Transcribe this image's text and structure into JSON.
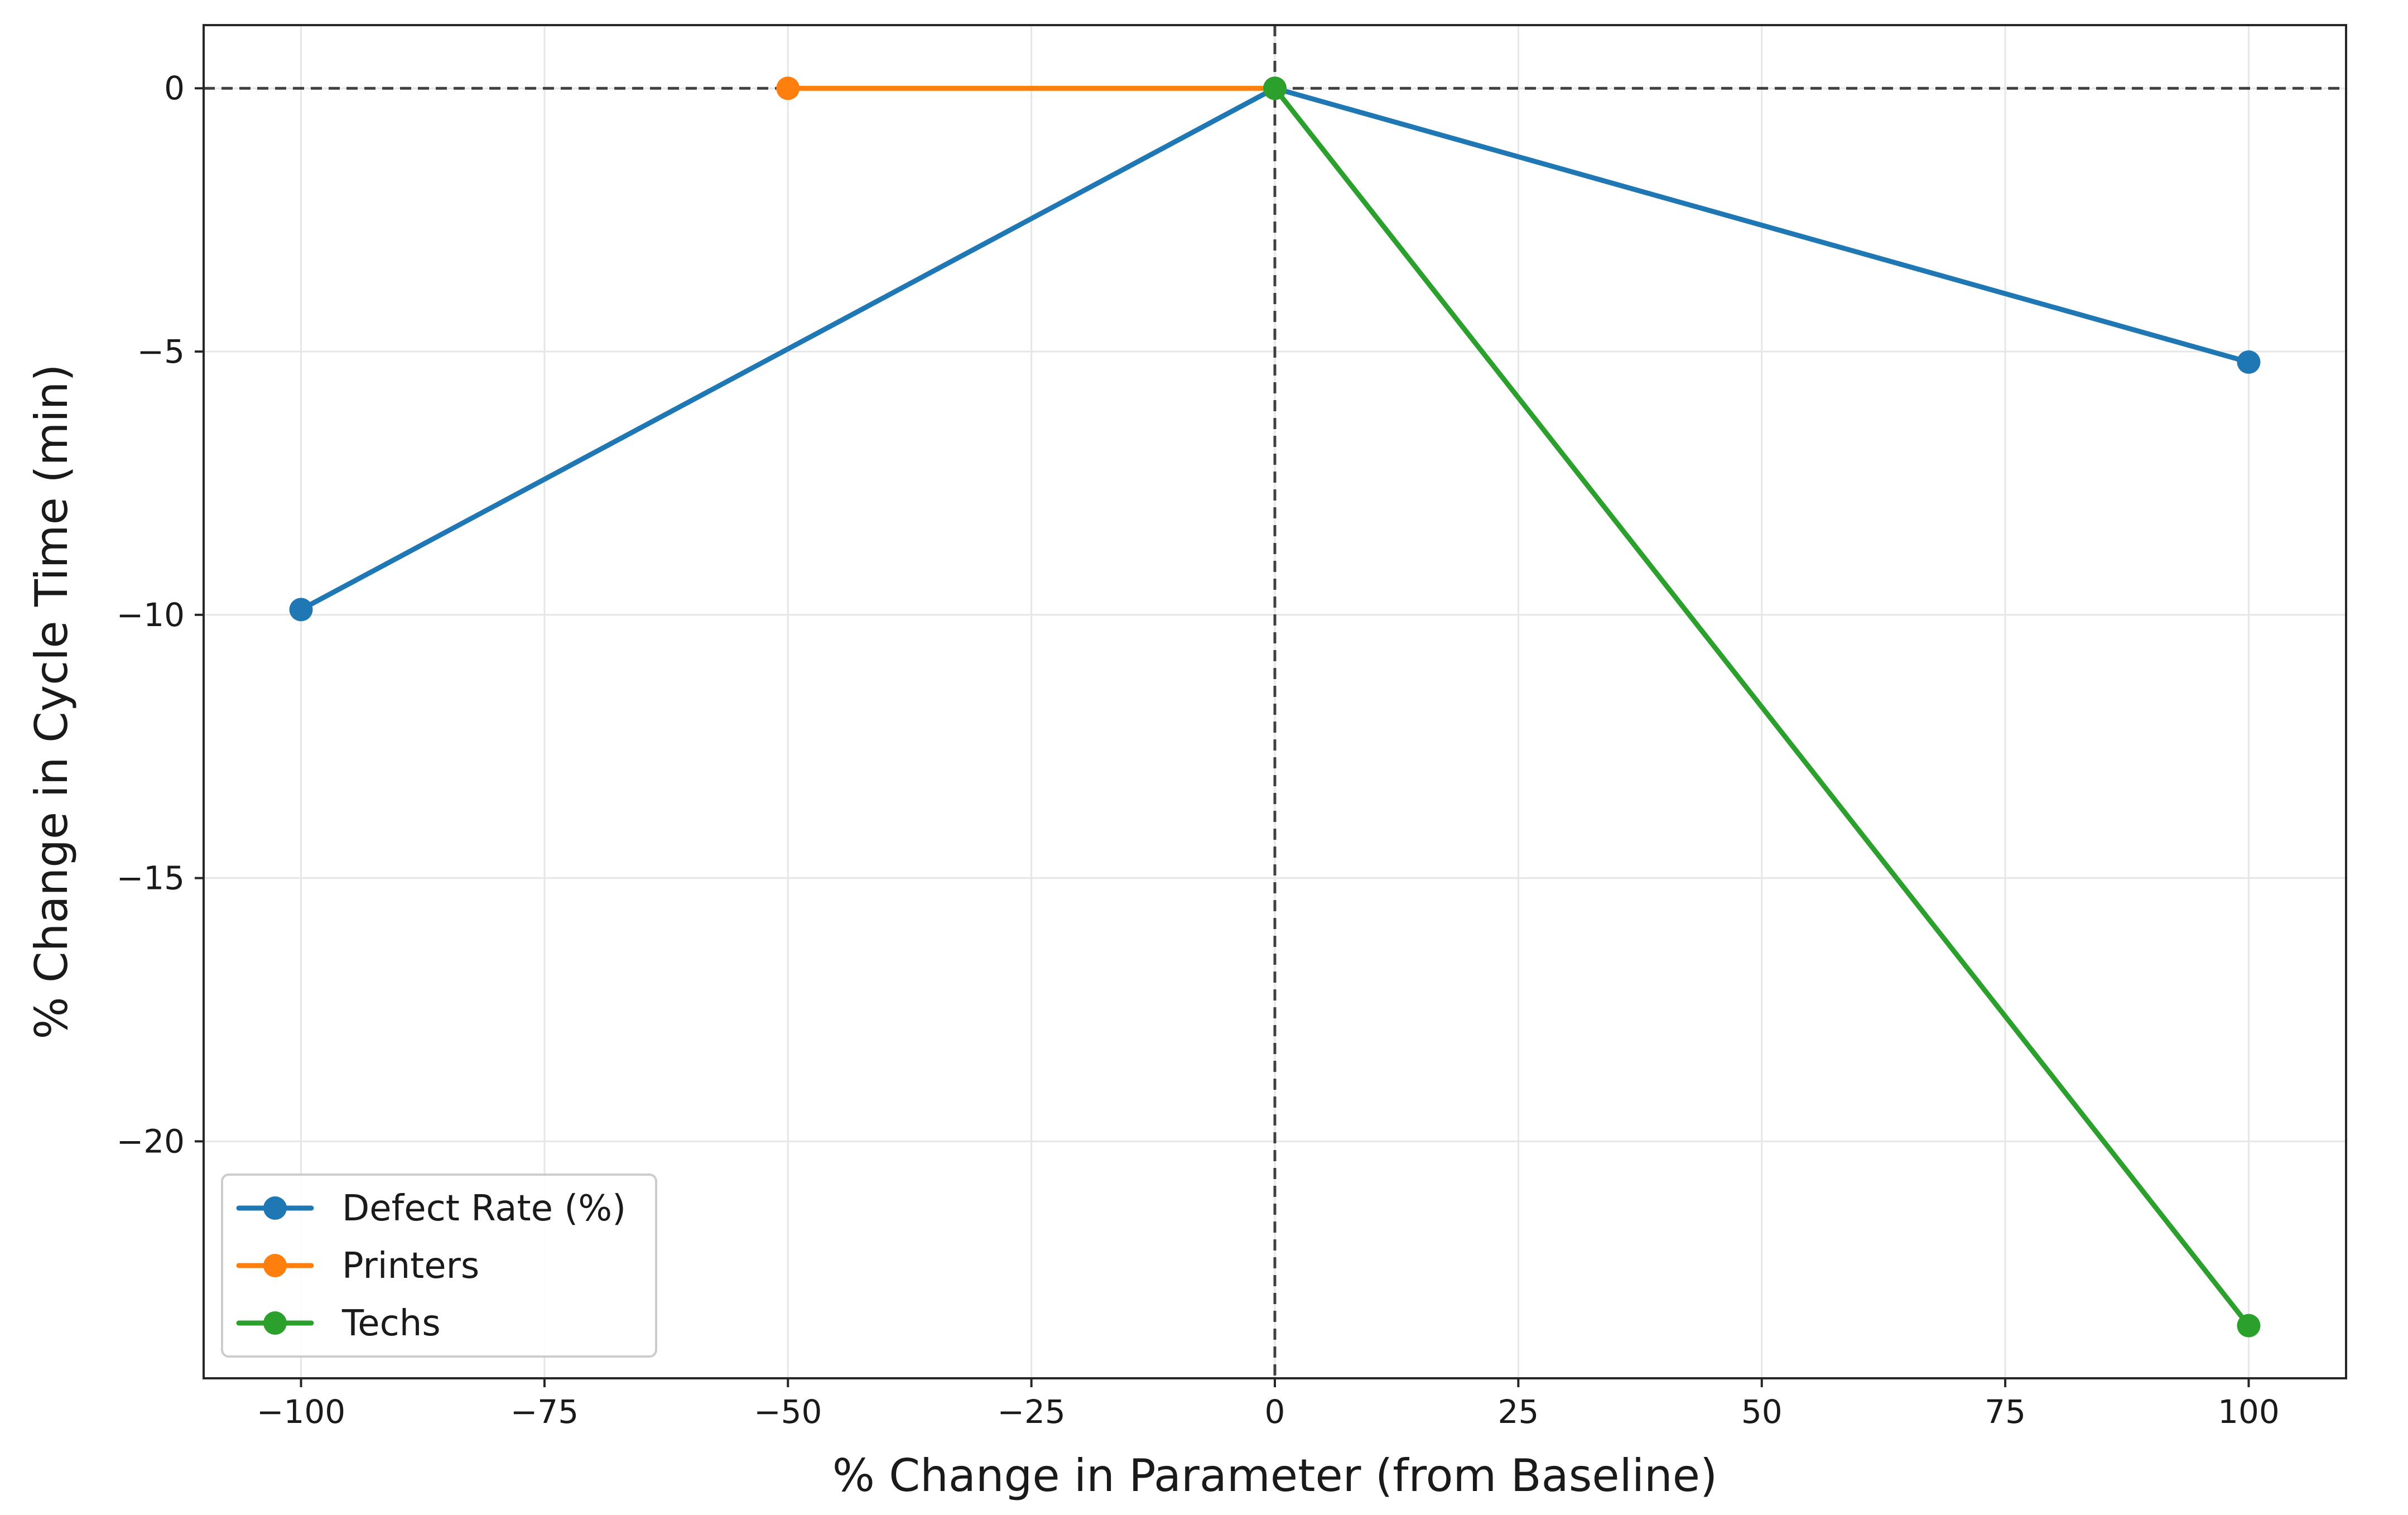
{
  "chart_data": {
    "type": "line",
    "title": "",
    "xlabel": "% Change in Parameter (from Baseline)",
    "ylabel": "% Change in Cycle Time (min)",
    "xlim": [
      -110,
      110
    ],
    "ylim": [
      -24.5,
      1.2
    ],
    "xticks": [
      -100,
      -75,
      -50,
      -25,
      0,
      25,
      50,
      75,
      100
    ],
    "yticks": [
      0,
      -5,
      -10,
      -15,
      -20
    ],
    "grid": true,
    "reference_lines": {
      "x": 0,
      "y": 0,
      "style": "dashed"
    },
    "legend": {
      "placement": "lower-left"
    },
    "series": [
      {
        "name": "Defect Rate (%)",
        "color": "#1f77b4",
        "x": [
          -100,
          0,
          100
        ],
        "y": [
          -9.9,
          0,
          -5.2
        ]
      },
      {
        "name": "Printers",
        "color": "#ff7f0e",
        "x": [
          -50,
          0
        ],
        "y": [
          0,
          0
        ]
      },
      {
        "name": "Techs",
        "color": "#2ca02c",
        "x": [
          0,
          100
        ],
        "y": [
          0,
          -23.5
        ]
      }
    ]
  }
}
